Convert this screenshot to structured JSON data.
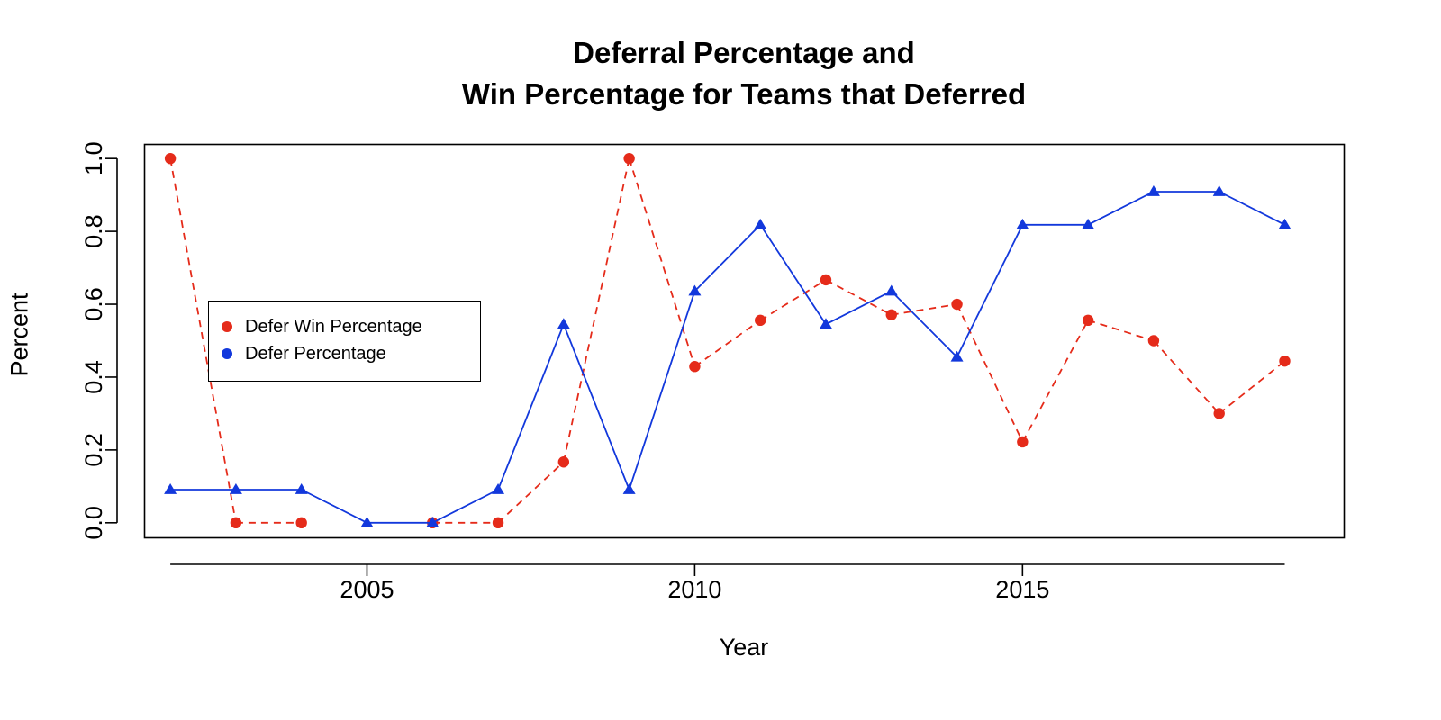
{
  "chart_data": {
    "type": "line",
    "title_lines": [
      "Deferral Percentage and",
      "Win Percentage for Teams that Deferred"
    ],
    "xlabel": "Year",
    "ylabel": "Percent",
    "xlim": [
      2001.6,
      2019.9
    ],
    "ylim": [
      -0.04,
      1.04
    ],
    "x_ticks": [
      2005,
      2010,
      2015
    ],
    "y_ticks": [
      0.0,
      0.2,
      0.4,
      0.6,
      0.8,
      1.0
    ],
    "y_tick_labels": [
      "0.0",
      "0.2",
      "0.4",
      "0.6",
      "0.8",
      "1.0"
    ],
    "x": [
      2002,
      2003,
      2004,
      2005,
      2006,
      2007,
      2008,
      2009,
      2010,
      2011,
      2012,
      2013,
      2014,
      2015,
      2016,
      2017,
      2018,
      2019
    ],
    "series": [
      {
        "name": "Defer Win Percentage",
        "color": "#e52b1a",
        "line_style": "dashed",
        "marker": "circle",
        "values": [
          1.0,
          0.0,
          0.0,
          null,
          0.0,
          0.0,
          0.167,
          1.0,
          0.429,
          0.556,
          0.667,
          0.571,
          0.6,
          0.222,
          0.556,
          0.5,
          0.3,
          0.444
        ]
      },
      {
        "name": "Defer Percentage",
        "color": "#1238dc",
        "line_style": "solid",
        "marker": "triangle",
        "values": [
          0.091,
          0.091,
          0.091,
          0.0,
          0.0,
          0.091,
          0.545,
          0.091,
          0.636,
          0.818,
          0.545,
          0.636,
          0.455,
          0.818,
          0.818,
          0.909,
          0.909,
          0.818
        ]
      }
    ],
    "legend_position": "left",
    "grid": false
  }
}
